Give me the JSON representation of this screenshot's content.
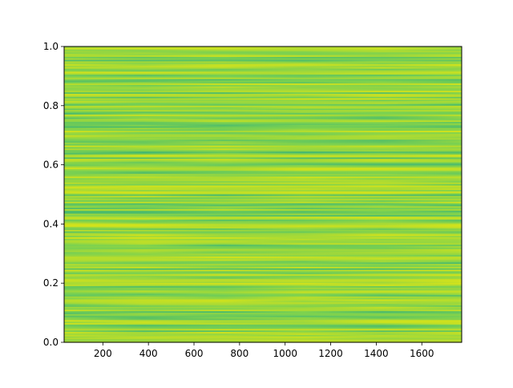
{
  "chart_data": {
    "type": "heatmap",
    "title": "",
    "xlabel": "",
    "ylabel": "",
    "xlim": [
      30,
      1775
    ],
    "ylim": [
      0.0,
      1.0
    ],
    "xticks": [
      200,
      400,
      600,
      800,
      1000,
      1200,
      1400,
      1600
    ],
    "xtick_labels": [
      "200",
      "400",
      "600",
      "800",
      "1000",
      "1200",
      "1400",
      "1600"
    ],
    "yticks": [
      0.0,
      0.2,
      0.4,
      0.6,
      0.8,
      1.0
    ],
    "ytick_labels": [
      "0.0",
      "0.2",
      "0.4",
      "0.6",
      "0.8",
      "1.0"
    ],
    "grid": false,
    "colormap": "viridis",
    "colors": {
      "low": "#22a884",
      "mid": "#7ad151",
      "high": "#d2e21b"
    },
    "row_count": 200,
    "description_of_pattern": "horizontal streaks varying slowly along x"
  }
}
